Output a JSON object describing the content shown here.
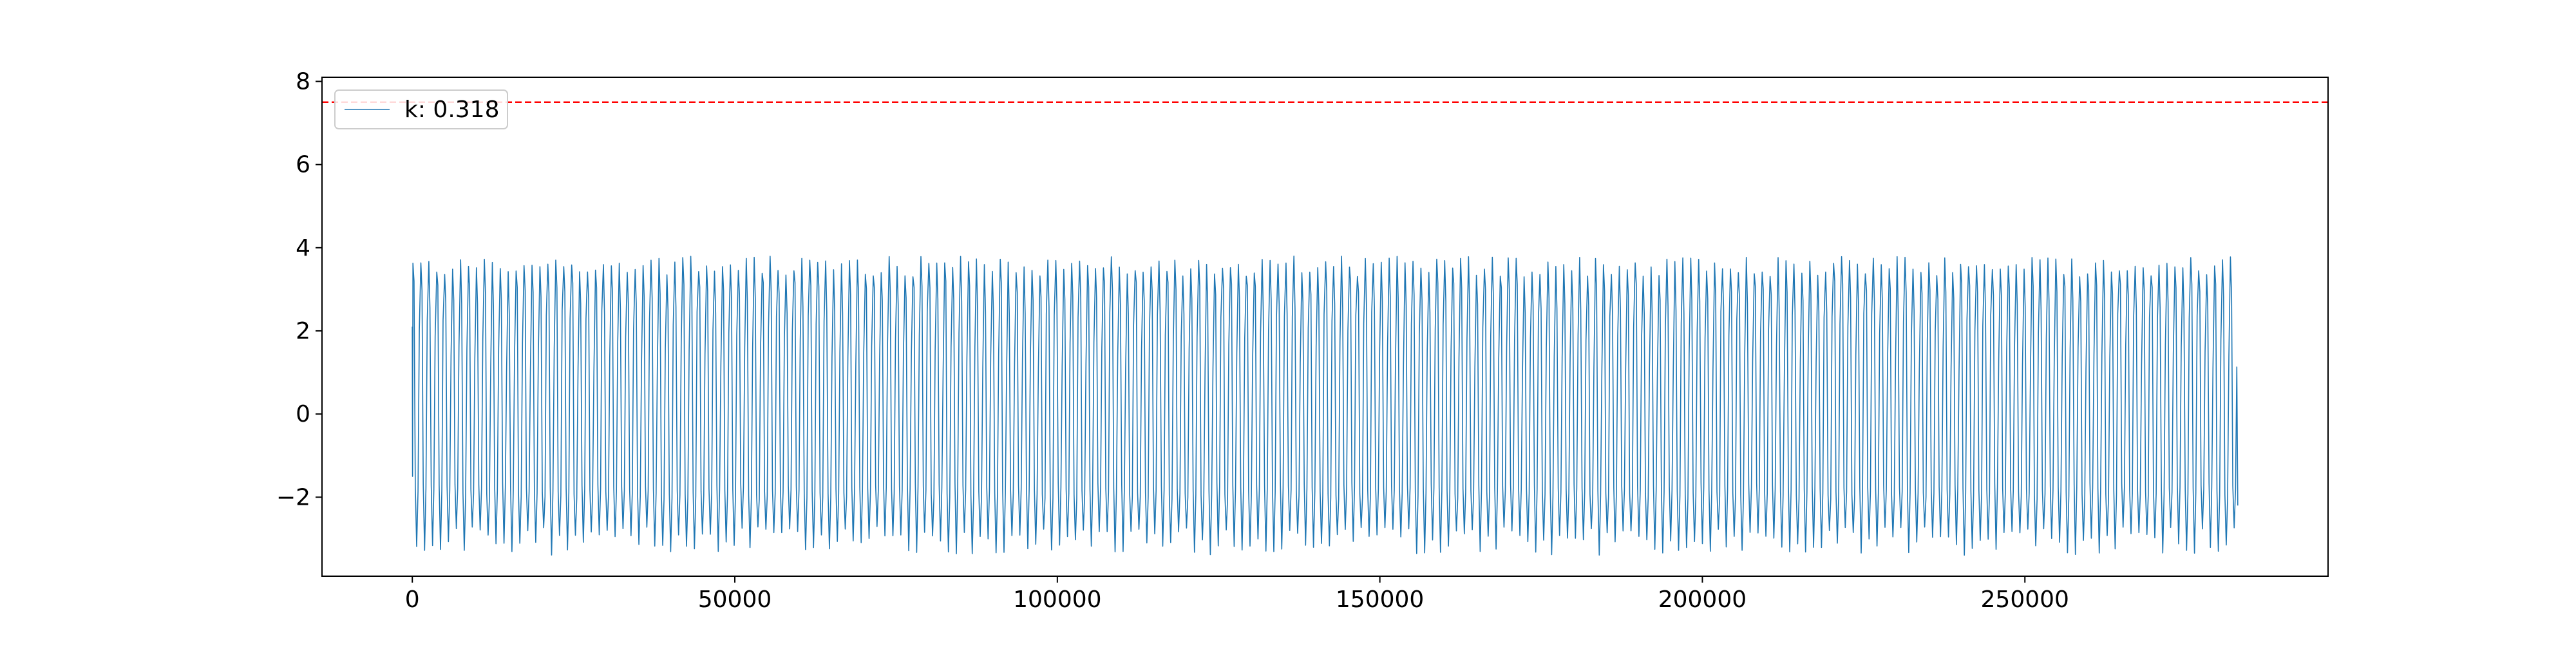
{
  "chart_data": {
    "type": "line",
    "title": "",
    "xlabel": "",
    "ylabel": "",
    "xlim": [
      -14000,
      297000
    ],
    "ylim": [
      -3.9,
      8.1
    ],
    "x_ticks": [
      0,
      50000,
      100000,
      150000,
      200000,
      250000
    ],
    "x_tick_labels": [
      "0",
      "50000",
      "100000",
      "150000",
      "200000",
      "250000"
    ],
    "y_ticks": [
      -2,
      0,
      2,
      4,
      6,
      8
    ],
    "y_tick_labels": [
      "−2",
      "0",
      "2",
      "4",
      "6",
      "8"
    ],
    "grid": false,
    "legend_position": "upper-left",
    "threshold": {
      "value": 7.5,
      "color": "#ff0000",
      "style": "dashed"
    },
    "series": [
      {
        "name": "k: 0.318",
        "color": "#1f77b4",
        "x_range": [
          0,
          283000
        ],
        "cycles": 230,
        "peak_range": [
          3.3,
          3.8
        ],
        "mid_trough_approx": -1.8,
        "trough_range": [
          -3.4,
          -2.7
        ],
        "values_summary": {
          "max": 3.8,
          "min": -3.4
        }
      }
    ]
  }
}
